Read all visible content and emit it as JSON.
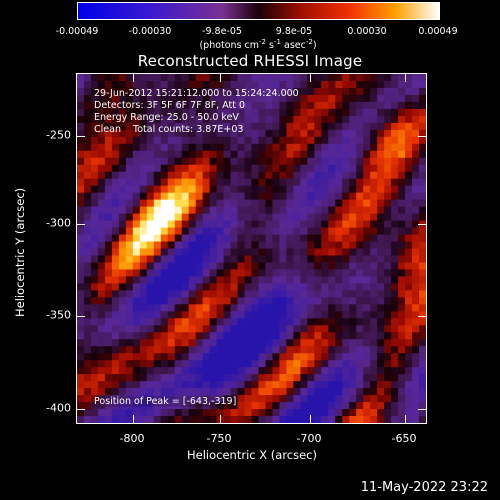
{
  "colorbar": {
    "labels": [
      "-0.00049",
      "-0.00030",
      "-9.8e-05",
      "9.8e-05",
      "0.00030",
      "0.00049"
    ],
    "units_prefix": "(photons cm",
    "units_exp1": "-2",
    "units_mid": " s",
    "units_exp2": "-1",
    "units_suffix": " asec",
    "units_exp3": "-2",
    "units_close": ")",
    "colormap": "rhessi-blue-purple-red-yellow-white"
  },
  "title": "Reconstructed RHESSI Image",
  "info": {
    "time_range": "29-Jun-2012 15:21:12.000 to 15:24:24.000",
    "detectors": "Detectors: 3F 5F 6F 7F 8F, Att 0",
    "energy": "Energy Range: 25.0 - 50.0 keV",
    "clean": "Clean    Total counts: 3.87E+03"
  },
  "peak": "Position of Peak = [-643,-319]",
  "axes": {
    "xlabel": "Heliocentric X (arcsec)",
    "ylabel": "Heliocentric Y (arcsec)",
    "xticks": [
      "-800",
      "-750",
      "-700",
      "-650"
    ],
    "yticks": [
      "-250",
      "-300",
      "-350",
      "-400"
    ]
  },
  "timestamp": "11-May-2022 23:22"
}
